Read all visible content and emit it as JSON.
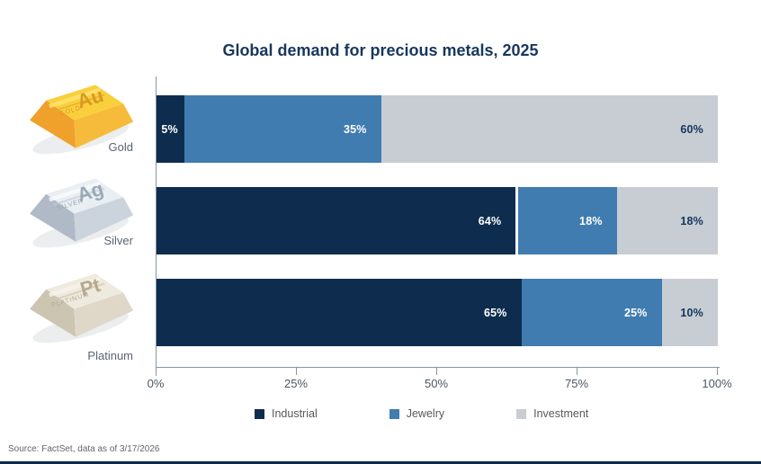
{
  "title": "Global demand for precious metals, 2025",
  "source_note": "Source: FactSet, data as of 3/17/2026",
  "chart_data": {
    "type": "bar",
    "orientation": "horizontal",
    "stacked": true,
    "title": "Global demand for precious metals, 2025",
    "categories": [
      "Gold",
      "Silver",
      "Platinum"
    ],
    "series": [
      {
        "name": "Industrial",
        "color": "#0E2D4E",
        "label_color": "#FFFFFF",
        "values": [
          5,
          64,
          65
        ]
      },
      {
        "name": "Jewelry",
        "color": "#407CB0",
        "label_color": "#FFFFFF",
        "values": [
          35,
          18,
          25
        ]
      },
      {
        "name": "Investment",
        "color": "#C8CDD4",
        "label_color": "#14355C",
        "values": [
          60,
          18,
          10
        ]
      }
    ],
    "value_suffix": "%",
    "x_ticks": [
      "0%",
      "25%",
      "50%",
      "75%",
      "100%"
    ],
    "xlim": [
      0,
      100
    ],
    "grid": false,
    "legend_position": "bottom"
  },
  "legend": {
    "items": [
      {
        "label": "Industrial",
        "color": "#0E2D4E"
      },
      {
        "label": "Jewelry",
        "color": "#407CB0"
      },
      {
        "label": "Investment",
        "color": "#C8CDD4"
      }
    ]
  },
  "metals": [
    {
      "label": "Gold",
      "symbol": "Au",
      "engraving": "GOLD",
      "icon": "gold-ingot-icon",
      "faces": {
        "top": "#FACF3C",
        "left": "#EFA12B",
        "right": "#F6BB3B",
        "stripe_light": "#FFE272",
        "stripe_dark": "#E2AC2E",
        "text": "#D89A23"
      }
    },
    {
      "label": "Silver",
      "symbol": "Ag",
      "engraving": "SILVER",
      "icon": "silver-ingot-icon",
      "faces": {
        "top": "#E9EEF3",
        "left": "#AFBAC6",
        "right": "#CBD3DC",
        "stripe_light": "#F8FBFD",
        "stripe_dark": "#C2CBD5",
        "text": "#9AA8B6"
      }
    },
    {
      "label": "Platinum",
      "symbol": "Pt",
      "engraving": "PLATINUM",
      "icon": "platinum-ingot-icon",
      "faces": {
        "top": "#EFEADE",
        "left": "#CCC5B2",
        "right": "#DFD8C9",
        "stripe_light": "#F8F4EB",
        "stripe_dark": "#CDC5B1",
        "text": "#B5A98E"
      }
    }
  ],
  "colors": {
    "title": "#17375E",
    "axis_line": "#8795A5",
    "tick_label": "#4C5863",
    "metal_label": "#5A6673",
    "legend_label": "#595959",
    "source": "#666666",
    "bottom_rule": "#0E2D4E"
  }
}
